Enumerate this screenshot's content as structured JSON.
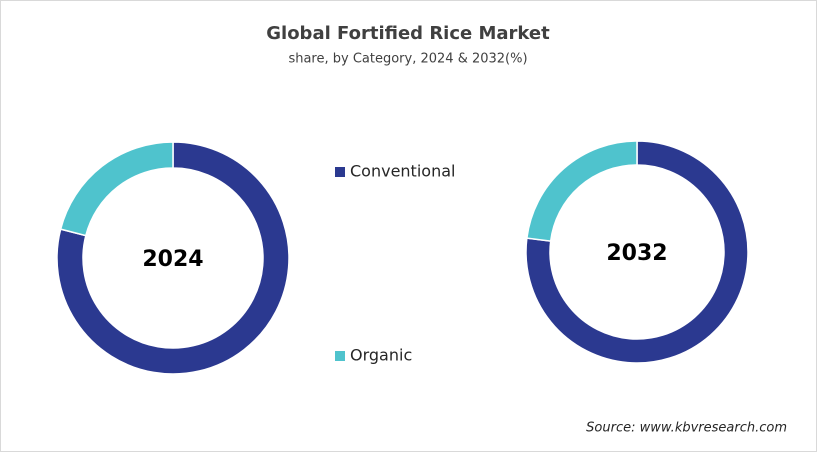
{
  "title": "Global Fortified Rice Market",
  "subtitle": "share, by Category, 2024 & 2032(%)",
  "source": "Source: www.kbvresearch.com",
  "chart_data": [
    {
      "type": "donut",
      "title": "2024",
      "categories": [
        "Conventional",
        "Organic"
      ],
      "values": [
        79,
        21
      ],
      "colors": [
        "#2b3990",
        "#4fc3cd"
      ]
    },
    {
      "type": "donut",
      "title": "2032",
      "categories": [
        "Conventional",
        "Organic"
      ],
      "values": [
        77,
        23
      ],
      "colors": [
        "#2b3990",
        "#4fc3cd"
      ]
    }
  ]
}
